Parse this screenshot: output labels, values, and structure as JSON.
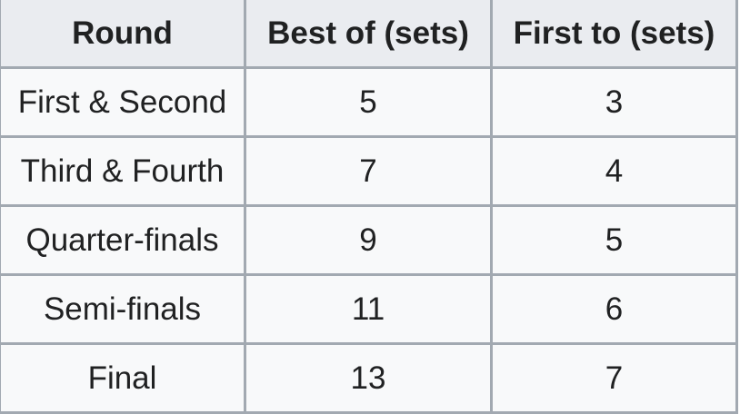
{
  "table": {
    "headers": [
      "Round",
      "Best of (sets)",
      "First to (sets)"
    ],
    "rows": [
      [
        "First & Second",
        "5",
        "3"
      ],
      [
        "Third & Fourth",
        "7",
        "4"
      ],
      [
        "Quarter-finals",
        "9",
        "5"
      ],
      [
        "Semi-finals",
        "11",
        "6"
      ],
      [
        "Final",
        "13",
        "7"
      ]
    ]
  }
}
